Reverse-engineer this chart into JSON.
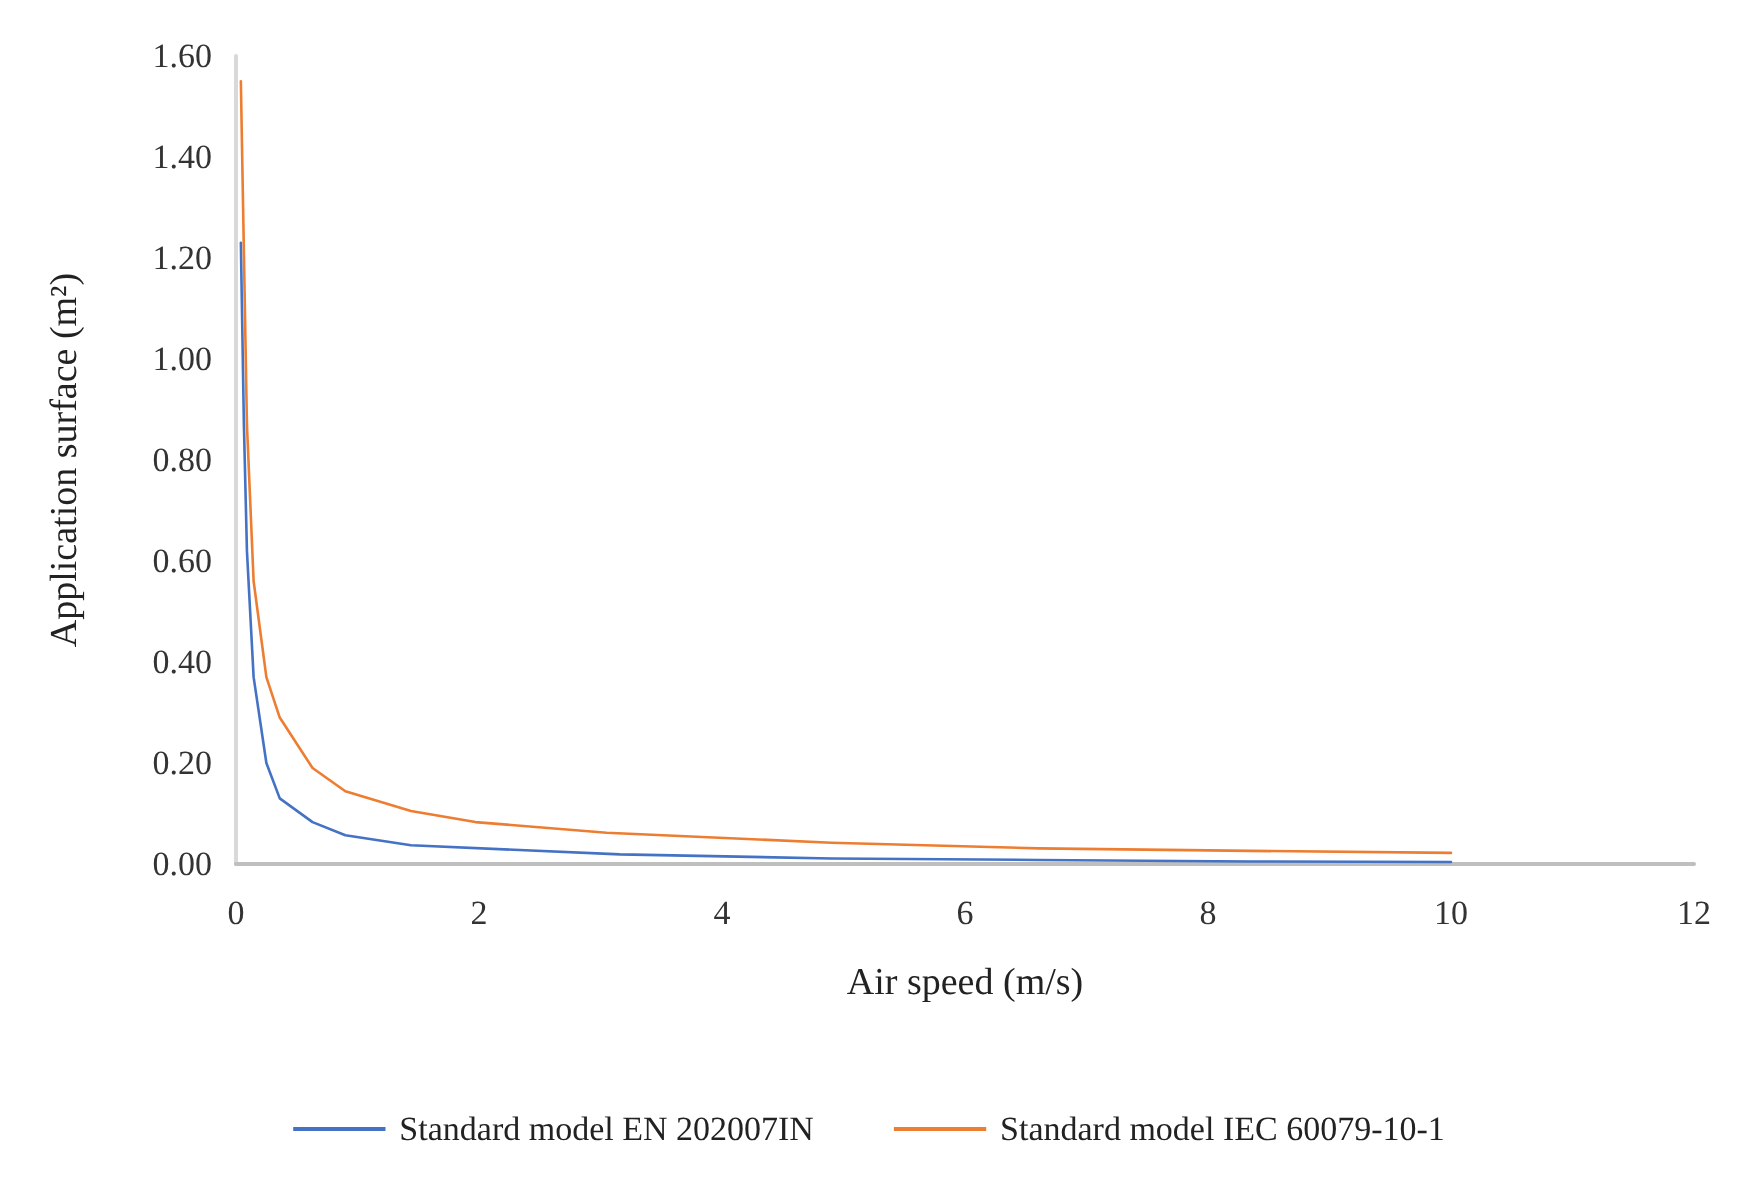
{
  "chart_data": {
    "type": "line",
    "xlabel": "Air speed (m/s)",
    "ylabel": "Application surface (m²)",
    "xlim": [
      0,
      12
    ],
    "xticks": [
      0,
      2,
      4,
      6,
      8,
      10,
      12
    ],
    "ylim": [
      0,
      1.6
    ],
    "yticks": [
      {
        "value": 0,
        "label": "0.00"
      },
      {
        "value": 0.2,
        "label": "0.20"
      },
      {
        "value": 0.4,
        "label": "0.40"
      },
      {
        "value": 0.6,
        "label": "0.60"
      },
      {
        "value": 0.8,
        "label": "0.80"
      },
      {
        "value": 1,
        "label": "1.00"
      },
      {
        "value": 1.2,
        "label": "1.20"
      },
      {
        "value": 1.4,
        "label": "1.40"
      },
      {
        "value": 1.6,
        "label": "1.60"
      }
    ],
    "grid": false,
    "legend": "bottom",
    "marker": "none",
    "line_style": "solid",
    "series": [
      {
        "name": "Standard model EN 202007IN",
        "color": "#4472c4",
        "x": [
          0.04,
          0.065,
          0.09,
          0.145,
          0.25,
          0.36,
          0.63,
          0.9,
          1.44,
          3.16,
          4.9,
          6.6,
          8.35,
          10
        ],
        "values": [
          1.23,
          0.87,
          0.62,
          0.37,
          0.2,
          0.13,
          0.083,
          0.057,
          0.037,
          0.019,
          0.011,
          0.008,
          0.005,
          0.004
        ]
      },
      {
        "name": "Standard model IEC 60079-10-1",
        "color": "#ed7d31",
        "x": [
          0.04,
          0.09,
          0.145,
          0.25,
          0.36,
          0.63,
          0.9,
          1.44,
          1.97,
          3.05,
          4.9,
          6.6,
          8.35,
          10
        ],
        "values": [
          1.55,
          0.87,
          0.56,
          0.37,
          0.29,
          0.19,
          0.144,
          0.105,
          0.083,
          0.062,
          0.042,
          0.031,
          0.026,
          0.022
        ]
      }
    ]
  }
}
